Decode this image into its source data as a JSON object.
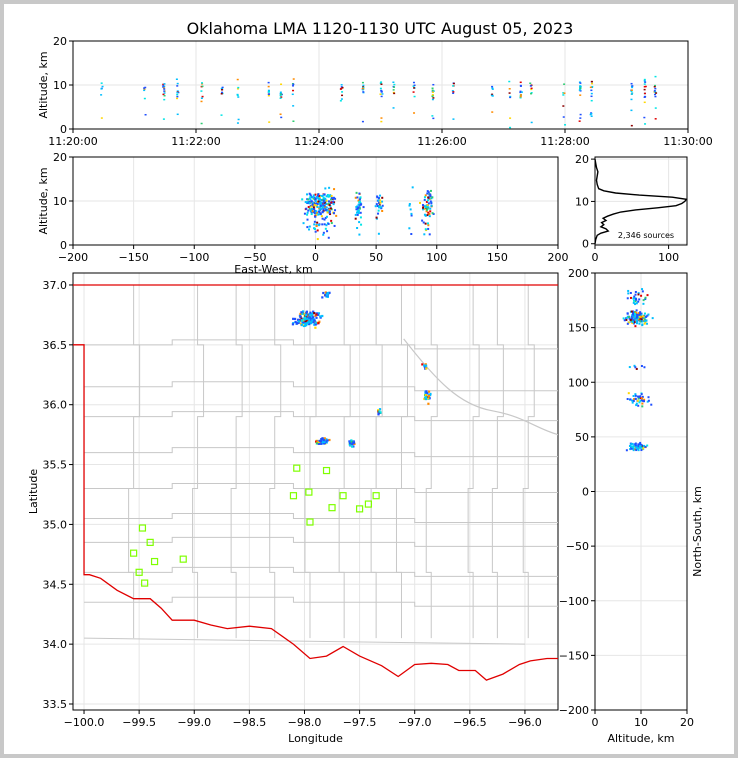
{
  "title": "Oklahoma LMA 1120-1130 UTC August 05, 2023",
  "source_count": "2,346 sources",
  "colors": {
    "map_state_border": "#e00000",
    "county_lines": "#c8c8c8",
    "station_marker": "#7fff00",
    "palette": [
      "#1f4fff",
      "#00bfff",
      "#00e5e5",
      "#2ecc71",
      "#ffd700",
      "#ff8c00",
      "#e00000",
      "#8b0000"
    ]
  },
  "chart_data": [
    {
      "panel": "time-altitude",
      "type": "scatter",
      "ylabel": "Altitude, km",
      "ylim": [
        0,
        20
      ],
      "xlim": [
        "11:20:00",
        "11:30:00"
      ],
      "x_ticks": [
        "11:20:00",
        "11:22:00",
        "11:24:00",
        "11:26:00",
        "11:28:00",
        "11:30:00"
      ],
      "y_ticks": [
        "0",
        "10",
        "20"
      ],
      "flash_times": [
        "11:20:27",
        "11:21:09",
        "11:21:28",
        "11:21:41",
        "11:22:05",
        "11:22:24",
        "11:22:40",
        "11:23:10",
        "11:23:22",
        "11:23:34",
        "11:24:21",
        "11:24:42",
        "11:25:00",
        "11:25:12",
        "11:25:32",
        "11:25:50",
        "11:26:10",
        "11:26:48",
        "11:27:05",
        "11:27:16",
        "11:27:26",
        "11:27:58",
        "11:28:14",
        "11:28:25",
        "11:29:04",
        "11:29:17",
        "11:29:27"
      ]
    },
    {
      "panel": "east-west-altitude",
      "type": "scatter",
      "xlabel": "East-West, km",
      "ylabel": "Altitude, km",
      "xlim": [
        -200,
        200
      ],
      "ylim": [
        0,
        20
      ],
      "x_ticks": [
        "−200",
        "−150",
        "−100",
        "−50",
        "0",
        "50",
        "100",
        "150",
        "200"
      ],
      "y_ticks": [
        "0",
        "10",
        "20"
      ]
    },
    {
      "panel": "altitude-histogram",
      "type": "line",
      "xlim": [
        0,
        125
      ],
      "ylim": [
        0,
        20
      ],
      "x_ticks": [
        "0",
        "100"
      ],
      "y_ticks": [
        "0",
        "10",
        "20"
      ],
      "altitude": [
        0,
        1,
        2,
        2.5,
        3,
        3.5,
        4,
        4.5,
        5,
        5.5,
        6,
        6.5,
        7,
        7.5,
        8,
        8.5,
        9,
        9.5,
        10,
        10.5,
        11,
        11.5,
        12,
        12.5,
        13,
        14,
        15,
        16,
        17,
        18,
        19,
        20
      ],
      "count": [
        0,
        1,
        3,
        8,
        18,
        15,
        8,
        12,
        9,
        15,
        11,
        17,
        25,
        35,
        55,
        85,
        110,
        118,
        122,
        124,
        105,
        60,
        28,
        12,
        5,
        3,
        2,
        3,
        4,
        2,
        1,
        0
      ]
    },
    {
      "panel": "plan-view",
      "type": "scatter",
      "xlabel": "Longitude",
      "ylabel": "Latitude",
      "xlim": [
        -100.1,
        -95.7
      ],
      "ylim": [
        33.45,
        37.1
      ],
      "x_ticks": [
        "−100.0",
        "−99.5",
        "−99.0",
        "−98.5",
        "−98.0",
        "−97.5",
        "−97.0",
        "−96.5",
        "−96.0"
      ],
      "y_ticks": [
        "33.5",
        "34.0",
        "34.5",
        "35.0",
        "35.5",
        "36.0",
        "36.5",
        "37.0"
      ],
      "lma_stations": [
        {
          "lon": -99.47,
          "lat": 34.97
        },
        {
          "lon": -99.4,
          "lat": 34.85
        },
        {
          "lon": -99.55,
          "lat": 34.76
        },
        {
          "lon": -99.36,
          "lat": 34.69
        },
        {
          "lon": -99.1,
          "lat": 34.71
        },
        {
          "lon": -99.5,
          "lat": 34.6
        },
        {
          "lon": -99.45,
          "lat": 34.51
        },
        {
          "lon": -98.07,
          "lat": 35.47
        },
        {
          "lon": -97.8,
          "lat": 35.45
        },
        {
          "lon": -98.1,
          "lat": 35.24
        },
        {
          "lon": -97.96,
          "lat": 35.27
        },
        {
          "lon": -97.65,
          "lat": 35.24
        },
        {
          "lon": -97.35,
          "lat": 35.24
        },
        {
          "lon": -97.42,
          "lat": 35.17
        },
        {
          "lon": -97.5,
          "lat": 35.13
        },
        {
          "lon": -97.75,
          "lat": 35.14
        },
        {
          "lon": -97.95,
          "lat": 35.02
        }
      ],
      "source_clusters": [
        {
          "lon": -97.98,
          "lat": 36.72
        },
        {
          "lon": -97.81,
          "lat": 36.93
        },
        {
          "lon": -97.85,
          "lat": 35.7
        },
        {
          "lon": -97.58,
          "lat": 35.69
        },
        {
          "lon": -96.9,
          "lat": 36.08
        },
        {
          "lon": -97.33,
          "lat": 35.95
        },
        {
          "lon": -96.92,
          "lat": 36.32
        }
      ]
    },
    {
      "panel": "north-south-altitude",
      "type": "scatter",
      "xlabel": "Altitude, km",
      "ylabel": "North-South, km",
      "xlim": [
        0,
        20
      ],
      "ylim": [
        -200,
        200
      ],
      "x_ticks": [
        "0",
        "10",
        "20"
      ],
      "y_ticks": [
        "−200",
        "−150",
        "−100",
        "−50",
        "0",
        "50",
        "100",
        "150",
        "200"
      ]
    }
  ]
}
